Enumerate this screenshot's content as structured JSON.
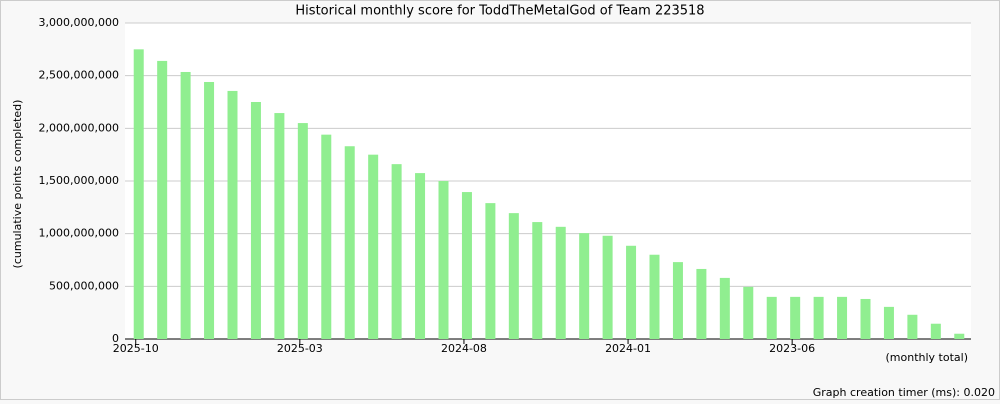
{
  "chart_data": {
    "type": "bar",
    "title": "Historical monthly score for ToddTheMetalGod of Team 223518",
    "y_label": "(cumulative points completed)",
    "x_label": "(monthly total)",
    "footer": "Graph creation timer (ms): 0.020",
    "color": "#90ee90",
    "grid": true,
    "categories": [
      "2025-10",
      null,
      null,
      null,
      null,
      null,
      null,
      "2025-03",
      null,
      null,
      null,
      null,
      null,
      null,
      "2024-08",
      null,
      null,
      null,
      null,
      null,
      null,
      "2024-01",
      null,
      null,
      null,
      null,
      null,
      null,
      "2023-06",
      null,
      null,
      null,
      null,
      null,
      null,
      null
    ],
    "values": [
      2750000000,
      2640000000,
      2535000000,
      2440000000,
      2355000000,
      2250000000,
      2145000000,
      2050000000,
      1940000000,
      1830000000,
      1750000000,
      1660000000,
      1575000000,
      1500000000,
      1395000000,
      1290000000,
      1195000000,
      1110000000,
      1065000000,
      1005000000,
      980000000,
      885000000,
      800000000,
      730000000,
      665000000,
      580000000,
      495000000,
      400000000,
      400000000,
      400000000,
      400000000,
      380000000,
      305000000,
      230000000,
      145000000,
      50000000
    ],
    "ylim": [
      0,
      3000000000
    ],
    "yticks": [
      0,
      {
        "value": 500000000,
        "label": "500,000,000"
      },
      {
        "value": 1000000000,
        "label": "1,000,000,000"
      },
      {
        "value": 1500000000,
        "label": "1,500,000,000"
      },
      {
        "value": 2000000000,
        "label": "2,000,000,000"
      },
      {
        "value": 2500000000,
        "label": "2,500,000,000"
      },
      {
        "value": 3000000000,
        "label": "3,000,000,000"
      }
    ]
  }
}
